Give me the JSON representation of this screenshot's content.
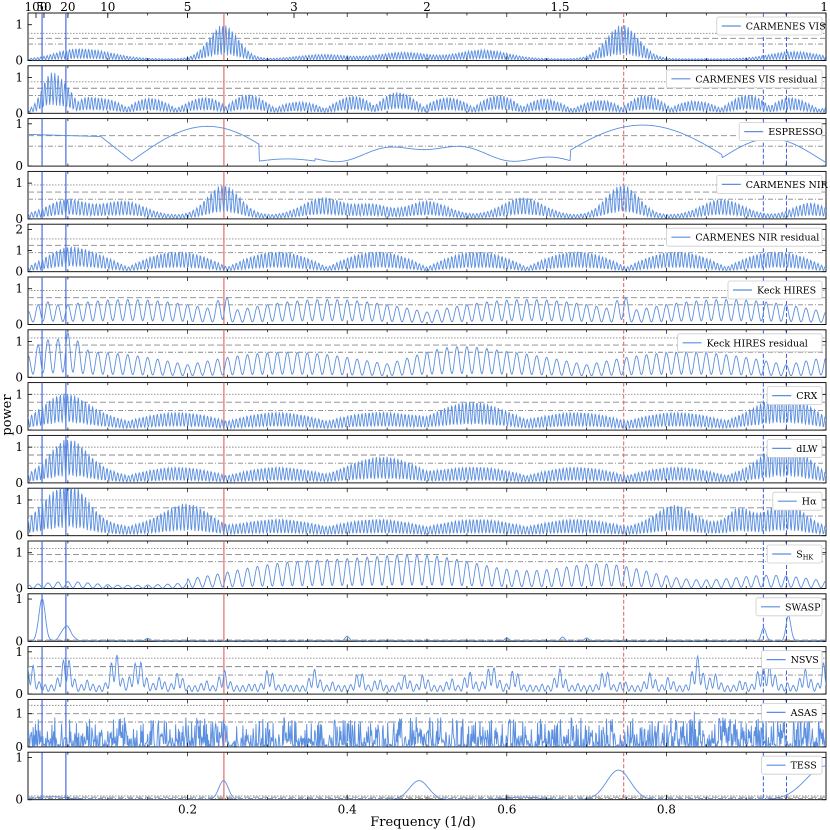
{
  "chart_data": {
    "type": "line",
    "xlabel": "Frequency (1/d)",
    "ylabel": "power",
    "xlim": [
      0.0,
      1.0
    ],
    "x_ticks": [
      {
        "value": 0.2,
        "label": "0.2"
      },
      {
        "value": 0.4,
        "label": "0.4"
      },
      {
        "value": 0.6,
        "label": "0.6"
      },
      {
        "value": 0.8,
        "label": "0.8"
      }
    ],
    "top_axis": {
      "quantity": "period (d)",
      "ticks": [
        {
          "period": 100,
          "label": "100"
        },
        {
          "period": 50,
          "label": "50"
        },
        {
          "period": 20,
          "label": "20"
        },
        {
          "period": 10,
          "label": "10"
        },
        {
          "period": 5,
          "label": "5"
        },
        {
          "period": 3,
          "label": "3"
        },
        {
          "period": 2,
          "label": "2"
        },
        {
          "period": 1.5,
          "label": "1.5"
        },
        {
          "period": 1,
          "label": "1"
        }
      ]
    },
    "colors": {
      "series": "#5b8fe0",
      "marker_red": "#e06060",
      "marker_blue": "#3a5fe0",
      "fap": "#888888"
    },
    "markers": {
      "solid_blue": [
        0.0176,
        0.0475
      ],
      "solid_red": [
        0.2455
      ],
      "dashed_red": [
        0.7465
      ],
      "dashed_blue": [
        0.9215,
        0.9505
      ]
    },
    "panels": [
      {
        "name": "CARMENES VIS",
        "ymax": 1.3,
        "yticks": [
          0,
          1
        ],
        "faps": [
          0.46,
          0.62,
          0.76
        ],
        "profile": "vis"
      },
      {
        "name": "CARMENES VIS residual",
        "ymax": 1.3,
        "yticks": [
          0,
          1
        ],
        "faps": [
          0.5,
          0.7,
          0.88
        ],
        "profile": "vis_res"
      },
      {
        "name": "ESPRESSO",
        "ymax": 1.1,
        "yticks": [
          0,
          1
        ],
        "faps": [
          0.47,
          0.72
        ],
        "profile": "espresso"
      },
      {
        "name": "CARMENES NIR",
        "ymax": 1.3,
        "yticks": [
          0,
          1
        ],
        "faps": [
          0.55,
          0.75,
          0.95
        ],
        "profile": "nir"
      },
      {
        "name": "CARMENES NIR residual",
        "ymax": 2.2,
        "yticks": [
          0,
          1,
          2
        ],
        "faps": [
          0.9,
          1.25,
          1.55
        ],
        "profile": "nir_res"
      },
      {
        "name": "Keck HIRES",
        "ymax": 1.3,
        "yticks": [
          0,
          1
        ],
        "faps": [
          0.55,
          0.75,
          0.95
        ],
        "profile": "hires"
      },
      {
        "name": "Keck HIRES residual",
        "ymax": 1.3,
        "yticks": [
          0,
          1
        ],
        "faps": [
          0.7,
          0.9,
          1.1
        ],
        "profile": "hires_res"
      },
      {
        "name": "CRX",
        "ymax": 1.3,
        "yticks": [
          0,
          1
        ],
        "faps": [
          0.55,
          0.78,
          1.0
        ],
        "profile": "crx"
      },
      {
        "name": "dLW",
        "ymax": 1.3,
        "yticks": [
          0,
          1
        ],
        "faps": [
          0.55,
          0.78,
          1.0
        ],
        "profile": "dlw"
      },
      {
        "name": "Hα",
        "ymax": 1.3,
        "yticks": [
          0,
          1
        ],
        "faps": [
          0.55,
          0.78,
          1.0
        ],
        "profile": "halpha"
      },
      {
        "name": "S_HK",
        "ymax": 1.3,
        "yticks": [
          0,
          1
        ],
        "faps": [
          0.75,
          0.95,
          1.12
        ],
        "profile": "shk"
      },
      {
        "name": "SWASP",
        "ymax": 1.1,
        "yticks": [
          0,
          1
        ],
        "faps": [
          0.02,
          0.03
        ],
        "profile": "swasp"
      },
      {
        "name": "NSVS",
        "ymax": 1.1,
        "yticks": [
          0,
          1
        ],
        "faps": [
          0.45,
          0.65,
          0.85
        ],
        "profile": "nsvs"
      },
      {
        "name": "ASAS",
        "ymax": 1.4,
        "yticks": [
          0,
          1
        ],
        "faps": [
          0.75,
          1.0,
          1.25
        ],
        "profile": "asas"
      },
      {
        "name": "TESS",
        "ymax": 1.1,
        "yticks": [
          0,
          1
        ],
        "faps": [
          0.03,
          0.06,
          0.09
        ],
        "profile": "tess"
      }
    ]
  }
}
